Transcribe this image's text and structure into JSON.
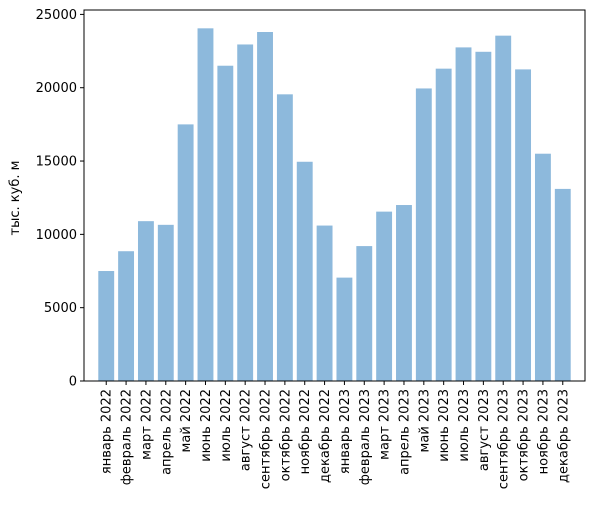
{
  "chart_data": {
    "type": "bar",
    "title": "",
    "xlabel": "",
    "ylabel": "тыс. куб. м",
    "ylim": [
      0,
      25300
    ],
    "yticks": [
      0,
      5000,
      10000,
      15000,
      20000,
      25000
    ],
    "grid": false,
    "bar_color": "#8db9dc",
    "categories": [
      "январь 2022",
      "февраль 2022",
      "март 2022",
      "апрель 2022",
      "май 2022",
      "июнь 2022",
      "июль 2022",
      "август 2022",
      "сентябрь 2022",
      "октябрь 2022",
      "ноябрь 2022",
      "декабрь 2022",
      "январь 2023",
      "февраль 2023",
      "март 2023",
      "апрель 2023",
      "май 2023",
      "июнь 2023",
      "июль 2023",
      "август 2023",
      "сентябрь 2023",
      "октябрь 2023",
      "ноябрь 2023",
      "декабрь 2023"
    ],
    "values": [
      7500,
      8850,
      10900,
      10650,
      17500,
      24050,
      21500,
      22950,
      23800,
      19550,
      14950,
      10600,
      7050,
      9200,
      11550,
      12000,
      19950,
      21300,
      22750,
      22450,
      23550,
      21250,
      15500,
      13100
    ]
  }
}
